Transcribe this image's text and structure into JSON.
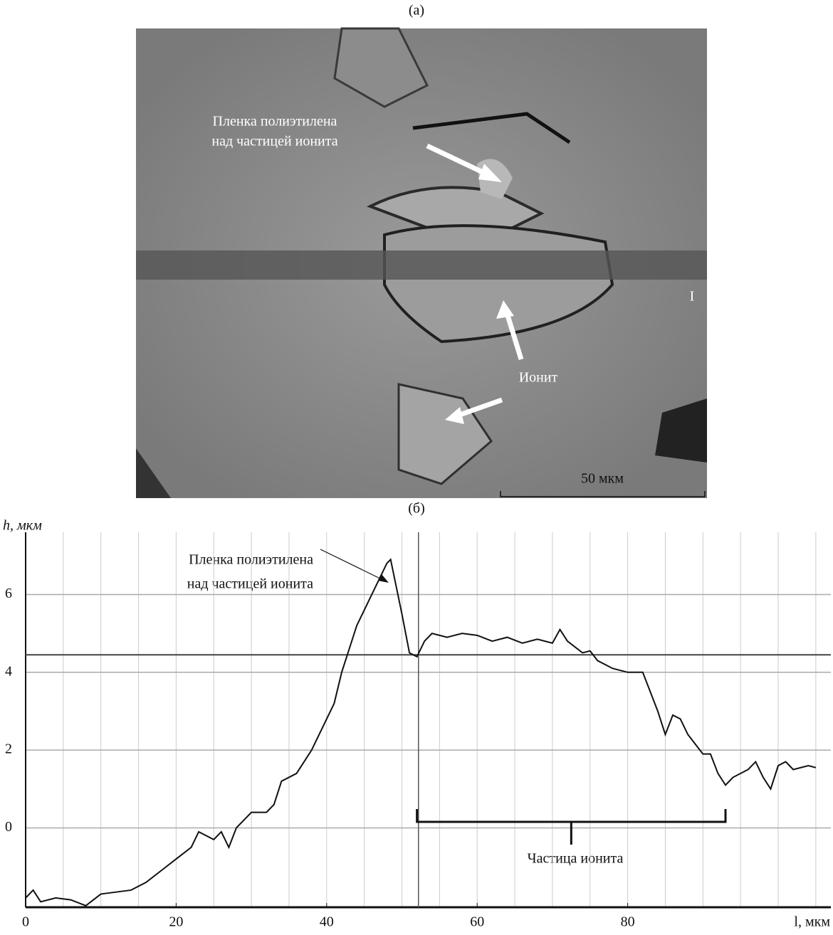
{
  "figure": {
    "panel_a_label": "(а)",
    "panel_b_label": "(б)",
    "image_annotations": {
      "film": "Пленка полиэтилена",
      "film_2": "над частицей ионита",
      "ionite": "Ионит",
      "marker": "I",
      "scale_bar": "50 мкм"
    }
  },
  "chart_data": {
    "type": "line",
    "y_label": "h, мкм",
    "x_label": "l, мкм",
    "annotation_film": "Пленка полиэтилена",
    "annotation_film_2": "над частицей ионита",
    "annotation_particle": "Частица ионита",
    "x": [
      0,
      1,
      2,
      4,
      6,
      8,
      10,
      12,
      14,
      16,
      18,
      20,
      22,
      23,
      25,
      26,
      27,
      28,
      30,
      31,
      32,
      33,
      34,
      36,
      38,
      40,
      41,
      42,
      43,
      44,
      46,
      48,
      48.5,
      50,
      51,
      52,
      53,
      54,
      56,
      58,
      60,
      62,
      64,
      66,
      68,
      70,
      71,
      72,
      74,
      75,
      76,
      78,
      80,
      82,
      83,
      84,
      85,
      86,
      87,
      88,
      90,
      91,
      92,
      93,
      94,
      96,
      97,
      98,
      99,
      100,
      101,
      102,
      104,
      105
    ],
    "values": [
      -1.8,
      -1.6,
      -1.9,
      -1.8,
      -1.85,
      -2.0,
      -1.7,
      -1.65,
      -1.6,
      -1.4,
      -1.1,
      -0.8,
      -0.5,
      -0.1,
      -0.3,
      -0.1,
      -0.5,
      0.0,
      0.4,
      0.4,
      0.4,
      0.6,
      1.2,
      1.4,
      2.0,
      2.8,
      3.2,
      4.0,
      4.6,
      5.2,
      6.0,
      6.8,
      6.9,
      5.5,
      4.5,
      4.4,
      4.8,
      5.0,
      4.9,
      5.0,
      4.95,
      4.8,
      4.9,
      4.75,
      4.85,
      4.75,
      5.1,
      4.8,
      4.5,
      4.55,
      4.3,
      4.1,
      4.0,
      4.0,
      3.5,
      3.0,
      2.4,
      2.9,
      2.8,
      2.4,
      1.9,
      1.9,
      1.4,
      1.1,
      1.3,
      1.5,
      1.7,
      1.3,
      1.0,
      1.6,
      1.7,
      1.5,
      1.6,
      1.55
    ],
    "color": "#111111",
    "xlim": [
      0,
      107
    ],
    "ylim": [
      -2.04,
      7.6
    ],
    "xticks": [
      0,
      20,
      40,
      60,
      80
    ],
    "yticks": [
      0,
      2,
      4,
      6
    ],
    "grid": true,
    "x_grid_step": 5,
    "cursor_y": 4.45,
    "cursor_x": 52.2,
    "particle_range": [
      52,
      93
    ]
  }
}
